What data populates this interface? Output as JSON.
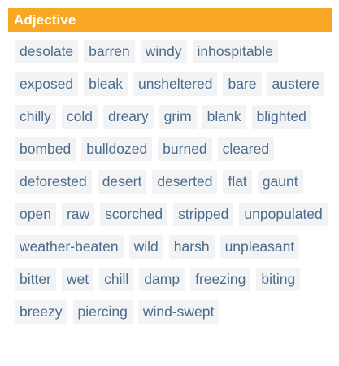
{
  "section": {
    "title": "Adjective",
    "header_color": "#f9a825"
  },
  "words": [
    "desolate",
    "barren",
    "windy",
    "inhospitable",
    "exposed",
    "bleak",
    "unsheltered",
    "bare",
    "austere",
    "chilly",
    "cold",
    "dreary",
    "grim",
    "blank",
    "blighted",
    "bombed",
    "bulldozed",
    "burned",
    "cleared",
    "deforested",
    "desert",
    "deserted",
    "flat",
    "gaunt",
    "open",
    "raw",
    "scorched",
    "stripped",
    "unpopulated",
    "weather-beaten",
    "wild",
    "harsh",
    "unpleasant",
    "bitter",
    "wet",
    "chill",
    "damp",
    "freezing",
    "biting",
    "breezy",
    "piercing",
    "wind-swept"
  ]
}
